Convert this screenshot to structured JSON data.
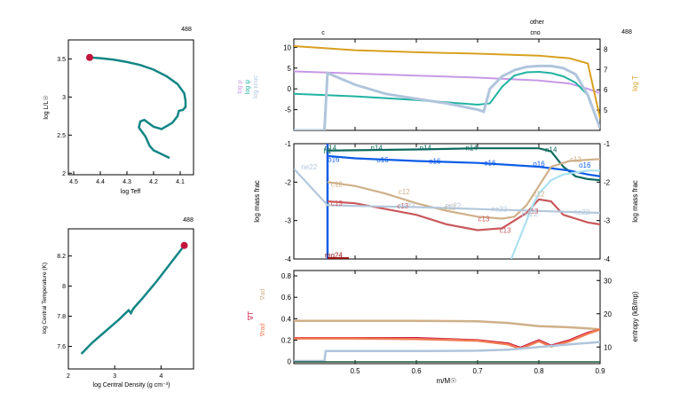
{
  "colors": {
    "teal": "#138585",
    "marker": "#c4143c",
    "lrho": "#c799e6",
    "lpsi": "#21b2a1",
    "leps": "#b0c5dc",
    "logT": "#d8a020",
    "h1": "#0d6a5e",
    "he4": "#0b5ce6",
    "c12": "#cfb089",
    "n14": "#c8585c",
    "o16": "#ace0f2",
    "ne22": "#b4c8dc",
    "mg24": "#9b1414",
    "grad_ad": "#cfb089",
    "grad_T": "#c4143c",
    "grad_rad": "#f07a52",
    "entropy": "#b0c5dc"
  },
  "charts": {
    "hr": {
      "model": "488",
      "xlabel": "log Teff",
      "ylabel": "log L/L☉",
      "xticks": [
        "4.5",
        "4.4",
        "4.3",
        "4.2",
        "4.1"
      ],
      "yticks": [
        "2",
        "2.5",
        "3",
        "3.5"
      ]
    },
    "trho": {
      "model": "488",
      "xlabel": "log Central Density (g cm⁻³)",
      "ylabel": "log Central Temperature (K)",
      "xticks": [
        "2",
        "3",
        "4"
      ],
      "yticks": [
        "7.6",
        "7.8",
        "8",
        "8.2"
      ]
    },
    "profile": {
      "model": "488",
      "top_labels": {
        "c": "c",
        "other": "other",
        "cno": "cno"
      },
      "top_left_labels": [
        "log ρ",
        "log ψ",
        "log εnuc"
      ],
      "top_right_label": "log T",
      "top_yticks_left": [
        "-5",
        "0",
        "5",
        "10"
      ],
      "top_yticks_right": [
        "5",
        "6",
        "7",
        "8"
      ],
      "mid_ylabel_left": "log mass frac",
      "mid_ylabel_right": "log mass frac",
      "mid_yticks": [
        "-4",
        "-3",
        "-2",
        "-1"
      ],
      "bottom_left_labels": [
        "∇ad",
        "∇T",
        "∇rad"
      ],
      "bottom_right_label": "entropy (kB/mp)",
      "bottom_yticks_left": [
        "0",
        "0.2",
        "0.4",
        "0.6",
        "0.8"
      ],
      "bottom_yticks_right": [
        "10",
        "20",
        "30"
      ],
      "xlabel": "m/M☉",
      "xticks": [
        "0.5",
        "0.6",
        "0.7",
        "0.8",
        "0.9"
      ],
      "species_labels": [
        {
          "text": "h1",
          "series": "h1",
          "x": 0.455,
          "y": -1.18
        },
        {
          "text": "n14",
          "series": "h1",
          "x": 0.46,
          "y": -1.1
        },
        {
          "text": "n14",
          "series": "h1",
          "x": 0.535,
          "y": -1.1
        },
        {
          "text": "n14",
          "series": "h1",
          "x": 0.615,
          "y": -1.1
        },
        {
          "text": "n14",
          "series": "h1",
          "x": 0.69,
          "y": -1.1
        },
        {
          "text": "n14",
          "series": "h1",
          "x": 0.82,
          "y": -1.15
        },
        {
          "text": "o16",
          "series": "he4",
          "x": 0.465,
          "y": -1.4
        },
        {
          "text": "o16",
          "series": "he4",
          "x": 0.545,
          "y": -1.42
        },
        {
          "text": "o16",
          "series": "he4",
          "x": 0.63,
          "y": -1.45
        },
        {
          "text": "o16",
          "series": "he4",
          "x": 0.72,
          "y": -1.5
        },
        {
          "text": "o16",
          "series": "he4",
          "x": 0.8,
          "y": -1.52
        },
        {
          "text": "o16",
          "series": "he4",
          "x": 0.875,
          "y": -1.55
        },
        {
          "text": "ne22",
          "series": "ne22",
          "x": 0.425,
          "y": -1.6
        },
        {
          "text": "c12",
          "series": "c12",
          "x": 0.47,
          "y": -2.05
        },
        {
          "text": "c12",
          "series": "c12",
          "x": 0.58,
          "y": -2.25
        },
        {
          "text": "c12",
          "series": "c12",
          "x": 0.655,
          "y": -2.65
        },
        {
          "text": "c12",
          "series": "c12",
          "x": 0.8,
          "y": -2.3
        },
        {
          "text": "c12",
          "series": "c12",
          "x": 0.86,
          "y": -1.4
        },
        {
          "text": "c13",
          "series": "n14",
          "x": 0.47,
          "y": -2.55
        },
        {
          "text": "c13",
          "series": "n14",
          "x": 0.578,
          "y": -2.62
        },
        {
          "text": "c13",
          "series": "n14",
          "x": 0.71,
          "y": -2.95
        },
        {
          "text": "c13",
          "series": "n14",
          "x": 0.745,
          "y": -3.25
        },
        {
          "text": "c13",
          "series": "n14",
          "x": 0.79,
          "y": -2.75
        },
        {
          "text": "ne22",
          "series": "ne22",
          "x": 0.585,
          "y": -2.6
        },
        {
          "text": "ne22",
          "series": "ne22",
          "x": 0.66,
          "y": -2.6
        },
        {
          "text": "ne22",
          "series": "ne22",
          "x": 0.735,
          "y": -2.7
        },
        {
          "text": "ne22",
          "series": "ne22",
          "x": 0.87,
          "y": -2.78
        },
        {
          "text": "ne22",
          "series": "ne22",
          "x": 0.785,
          "y": -2.82
        },
        {
          "text": "mg24",
          "series": "mg24",
          "x": 0.465,
          "y": -3.9
        }
      ]
    }
  },
  "chart_data": [
    {
      "type": "line",
      "title": "",
      "xlabel": "log Teff",
      "ylabel": "log L/L☉",
      "xlim": [
        4.52,
        4.05
      ],
      "ylim": [
        1.98,
        3.75
      ],
      "marker": {
        "x": 4.44,
        "y": 3.52
      },
      "series": [
        {
          "x": [
            4.44,
            4.4,
            4.35,
            4.3,
            4.25,
            4.2,
            4.15,
            4.11,
            4.085,
            4.08,
            4.08,
            4.09,
            4.105,
            4.11,
            4.13,
            4.17,
            4.2,
            4.235,
            4.25,
            4.255,
            4.23,
            4.215,
            4.2,
            4.17,
            4.14
          ],
          "y": [
            3.52,
            3.51,
            3.49,
            3.46,
            3.42,
            3.36,
            3.27,
            3.17,
            3.05,
            2.95,
            2.87,
            2.83,
            2.82,
            2.75,
            2.66,
            2.58,
            2.61,
            2.7,
            2.68,
            2.6,
            2.48,
            2.36,
            2.3,
            2.25,
            2.2
          ]
        }
      ]
    },
    {
      "type": "line",
      "title": "",
      "xlabel": "log Central Density (g cm⁻³)",
      "ylabel": "log Central Temperature (K)",
      "xlim": [
        2.0,
        4.7
      ],
      "ylim": [
        7.45,
        8.38
      ],
      "marker": {
        "x": 4.5,
        "y": 8.27
      },
      "series": [
        {
          "x": [
            2.28,
            2.5,
            2.8,
            3.1,
            3.3,
            3.35,
            3.4,
            3.6,
            3.9,
            4.2,
            4.5
          ],
          "y": [
            7.55,
            7.62,
            7.7,
            7.78,
            7.84,
            7.82,
            7.85,
            7.92,
            8.03,
            8.15,
            8.27
          ]
        }
      ]
    },
    {
      "type": "line",
      "title": "",
      "panel": "profile-top",
      "xlabel": "m/M☉",
      "xlim": [
        0.4,
        0.9
      ],
      "ylim_left": [
        -10,
        12
      ],
      "ylim_right": [
        4,
        8.5
      ],
      "series": [
        {
          "name": "log ρ",
          "axis": "left",
          "x": [
            0.4,
            0.5,
            0.6,
            0.7,
            0.8,
            0.85,
            0.88,
            0.9
          ],
          "y": [
            4.2,
            3.7,
            3.2,
            2.7,
            2.0,
            1.3,
            0.0,
            -1.0
          ]
        },
        {
          "name": "log ψ",
          "axis": "left",
          "x": [
            0.4,
            0.5,
            0.6,
            0.7,
            0.72,
            0.74,
            0.76,
            0.78,
            0.8,
            0.82,
            0.84,
            0.86,
            0.88,
            0.9
          ],
          "y": [
            -1.2,
            -1.8,
            -2.7,
            -3.8,
            -3.5,
            0.5,
            3.2,
            4.0,
            4.1,
            3.8,
            3.0,
            1.5,
            -1.5,
            -9.5
          ]
        },
        {
          "name": "log εnuc",
          "axis": "left",
          "x": [
            0.4,
            0.45,
            0.455,
            0.5,
            0.55,
            0.6,
            0.65,
            0.7,
            0.71,
            0.72,
            0.74,
            0.76,
            0.78,
            0.8,
            0.82,
            0.84,
            0.86,
            0.88,
            0.9
          ],
          "y": [
            -10,
            -10,
            3.8,
            1.0,
            -1.2,
            -2.4,
            -3.5,
            -5.0,
            -5.5,
            0.0,
            3.0,
            4.5,
            5.3,
            5.5,
            5.5,
            5.0,
            3.5,
            -1.5,
            -9.5
          ]
        },
        {
          "name": "log T",
          "axis": "right",
          "x": [
            0.4,
            0.5,
            0.6,
            0.7,
            0.8,
            0.85,
            0.88,
            0.9
          ],
          "y": [
            8.15,
            7.95,
            7.85,
            7.78,
            7.68,
            7.55,
            7.3,
            4.6
          ]
        }
      ]
    },
    {
      "type": "line",
      "title": "",
      "panel": "profile-abundances",
      "xlabel": "m/M☉",
      "ylabel": "log mass frac",
      "xlim": [
        0.4,
        0.9
      ],
      "ylim": [
        -4,
        -1
      ],
      "series": [
        {
          "name": "h1",
          "x": [
            0.455,
            0.6,
            0.7,
            0.8,
            0.82,
            0.84,
            0.86,
            0.88,
            0.9
          ],
          "y": [
            -1.18,
            -1.15,
            -1.12,
            -1.12,
            -1.2,
            -1.6,
            -1.85,
            -1.92,
            -1.95
          ]
        },
        {
          "name": "he4",
          "x": [
            0.455,
            0.5,
            0.6,
            0.7,
            0.8,
            0.85,
            0.88,
            0.9
          ],
          "y": [
            -1.32,
            -1.38,
            -1.45,
            -1.5,
            -1.6,
            -1.7,
            -1.8,
            -1.85
          ]
        },
        {
          "name": "c12",
          "x": [
            0.455,
            0.5,
            0.55,
            0.6,
            0.65,
            0.7,
            0.74,
            0.76,
            0.78,
            0.8,
            0.82,
            0.85,
            0.9
          ],
          "y": [
            -2.0,
            -2.1,
            -2.3,
            -2.55,
            -2.75,
            -2.9,
            -2.95,
            -2.9,
            -2.6,
            -2.1,
            -1.6,
            -1.45,
            -1.4
          ]
        },
        {
          "name": "n14",
          "x": [
            0.455,
            0.5,
            0.55,
            0.6,
            0.65,
            0.7,
            0.74,
            0.76,
            0.78,
            0.8,
            0.82,
            0.84,
            0.86,
            0.88,
            0.9
          ],
          "y": [
            -2.5,
            -2.55,
            -2.7,
            -2.85,
            -3.1,
            -3.25,
            -3.2,
            -3.0,
            -2.8,
            -2.45,
            -2.5,
            -2.85,
            -2.95,
            -3.05,
            -3.1
          ]
        },
        {
          "name": "o16",
          "x": [
            0.755,
            0.77,
            0.78,
            0.79,
            0.8,
            0.82,
            0.84,
            0.86,
            0.88,
            0.9
          ],
          "y": [
            -4.0,
            -3.4,
            -3.0,
            -2.6,
            -2.3,
            -1.95,
            -1.8,
            -1.75,
            -1.7,
            -1.7
          ]
        },
        {
          "name": "ne22",
          "x": [
            0.4,
            0.455,
            0.5,
            0.6,
            0.7,
            0.8,
            0.9
          ],
          "y": [
            -1.65,
            -2.6,
            -2.62,
            -2.65,
            -2.7,
            -2.75,
            -2.8
          ]
        },
        {
          "name": "mg24",
          "x": [
            0.455,
            0.47,
            0.49
          ],
          "y": [
            -3.98,
            -3.98,
            -3.98
          ]
        }
      ]
    },
    {
      "type": "line",
      "title": "",
      "panel": "profile-gradients",
      "xlabel": "m/M☉",
      "xlim": [
        0.4,
        0.9
      ],
      "ylim_left": [
        -0.02,
        0.85
      ],
      "ylim_right": [
        5,
        33
      ],
      "series": [
        {
          "name": "∇ad",
          "axis": "left",
          "x": [
            0.4,
            0.5,
            0.6,
            0.7,
            0.75,
            0.8,
            0.85,
            0.88,
            0.9
          ],
          "y": [
            0.38,
            0.38,
            0.38,
            0.375,
            0.36,
            0.33,
            0.32,
            0.31,
            0.3
          ]
        },
        {
          "name": "∇T",
          "axis": "left",
          "x": [
            0.4,
            0.5,
            0.6,
            0.7,
            0.75,
            0.77,
            0.8,
            0.82,
            0.85,
            0.88,
            0.9
          ],
          "y": [
            0.22,
            0.22,
            0.22,
            0.2,
            0.17,
            0.13,
            0.2,
            0.15,
            0.2,
            0.27,
            0.3
          ]
        },
        {
          "name": "∇rad",
          "axis": "left",
          "x": [
            0.4,
            0.5,
            0.6,
            0.7,
            0.75,
            0.77,
            0.8,
            0.82,
            0.85,
            0.88,
            0.9
          ],
          "y": [
            0.215,
            0.215,
            0.21,
            0.195,
            0.16,
            0.12,
            0.19,
            0.14,
            0.19,
            0.26,
            0.3
          ]
        },
        {
          "name": "entropy",
          "axis": "right",
          "x": [
            0.4,
            0.45,
            0.452,
            0.5,
            0.6,
            0.7,
            0.75,
            0.8,
            0.85,
            0.9
          ],
          "y": [
            5.8,
            5.8,
            8.8,
            8.8,
            8.8,
            8.9,
            9.2,
            10.0,
            10.8,
            11.5
          ]
        }
      ]
    }
  ]
}
